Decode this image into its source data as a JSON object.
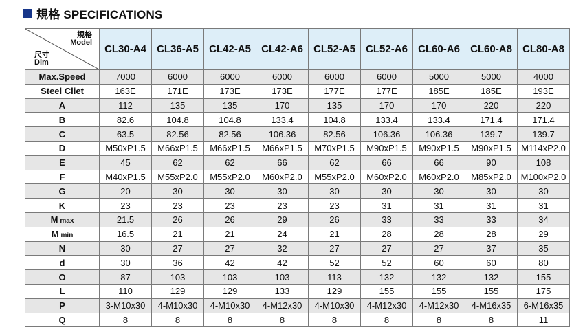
{
  "title": "規格  SPECIFICATIONS",
  "corner": {
    "top_line1": "規格",
    "top_line2": "Model",
    "bottom_line1": "尺寸",
    "bottom_line2": "Dim"
  },
  "models": [
    "CL30-A4",
    "CL36-A5",
    "CL42-A5",
    "CL42-A6",
    "CL52-A5",
    "CL52-A6",
    "CL60-A6",
    "CL60-A8",
    "CL80-A8"
  ],
  "rows": [
    {
      "label": "Max.Speed",
      "sub": "",
      "values": [
        "7000",
        "6000",
        "6000",
        "6000",
        "6000",
        "6000",
        "5000",
        "5000",
        "4000"
      ]
    },
    {
      "label": "Steel Cliet",
      "sub": "",
      "values": [
        "163E",
        "171E",
        "173E",
        "173E",
        "177E",
        "177E",
        "185E",
        "185E",
        "193E"
      ]
    },
    {
      "label": "A",
      "sub": "",
      "values": [
        "112",
        "135",
        "135",
        "170",
        "135",
        "170",
        "170",
        "220",
        "220"
      ]
    },
    {
      "label": "B",
      "sub": "",
      "values": [
        "82.6",
        "104.8",
        "104.8",
        "133.4",
        "104.8",
        "133.4",
        "133.4",
        "171.4",
        "171.4"
      ]
    },
    {
      "label": "C",
      "sub": "",
      "values": [
        "63.5",
        "82.56",
        "82.56",
        "106.36",
        "82.56",
        "106.36",
        "106.36",
        "139.7",
        "139.7"
      ]
    },
    {
      "label": "D",
      "sub": "",
      "values": [
        "M50xP1.5",
        "M66xP1.5",
        "M66xP1.5",
        "M66xP1.5",
        "M70xP1.5",
        "M90xP1.5",
        "M90xP1.5",
        "M90xP1.5",
        "M114xP2.0"
      ]
    },
    {
      "label": "E",
      "sub": "",
      "values": [
        "45",
        "62",
        "62",
        "66",
        "62",
        "66",
        "66",
        "90",
        "108"
      ]
    },
    {
      "label": "F",
      "sub": "",
      "values": [
        "M40xP1.5",
        "M55xP2.0",
        "M55xP2.0",
        "M60xP2.0",
        "M55xP2.0",
        "M60xP2.0",
        "M60xP2.0",
        "M85xP2.0",
        "M100xP2.0"
      ]
    },
    {
      "label": "G",
      "sub": "",
      "values": [
        "20",
        "30",
        "30",
        "30",
        "30",
        "30",
        "30",
        "30",
        "30"
      ]
    },
    {
      "label": "K",
      "sub": "",
      "values": [
        "23",
        "23",
        "23",
        "23",
        "23",
        "31",
        "31",
        "31",
        "31"
      ]
    },
    {
      "label": "M",
      "sub": "max",
      "values": [
        "21.5",
        "26",
        "26",
        "29",
        "26",
        "33",
        "33",
        "33",
        "34"
      ]
    },
    {
      "label": "M",
      "sub": "min",
      "values": [
        "16.5",
        "21",
        "21",
        "24",
        "21",
        "28",
        "28",
        "28",
        "29"
      ]
    },
    {
      "label": "N",
      "sub": "",
      "values": [
        "30",
        "27",
        "27",
        "32",
        "27",
        "27",
        "27",
        "37",
        "35"
      ]
    },
    {
      "label": "d",
      "sub": "",
      "values": [
        "30",
        "36",
        "42",
        "42",
        "52",
        "52",
        "60",
        "60",
        "80"
      ]
    },
    {
      "label": "O",
      "sub": "",
      "values": [
        "87",
        "103",
        "103",
        "103",
        "113",
        "132",
        "132",
        "132",
        "155"
      ]
    },
    {
      "label": "L",
      "sub": "",
      "values": [
        "110",
        "129",
        "129",
        "133",
        "129",
        "155",
        "155",
        "155",
        "175"
      ]
    },
    {
      "label": "P",
      "sub": "",
      "values": [
        "3-M10x30",
        "4-M10x30",
        "4-M10x30",
        "4-M12x30",
        "4-M10x30",
        "4-M12x30",
        "4-M12x30",
        "4-M16x35",
        "6-M16x35"
      ]
    },
    {
      "label": "Q",
      "sub": "",
      "values": [
        "8",
        "8",
        "8",
        "8",
        "8",
        "8",
        "8",
        "8",
        "11"
      ]
    }
  ]
}
